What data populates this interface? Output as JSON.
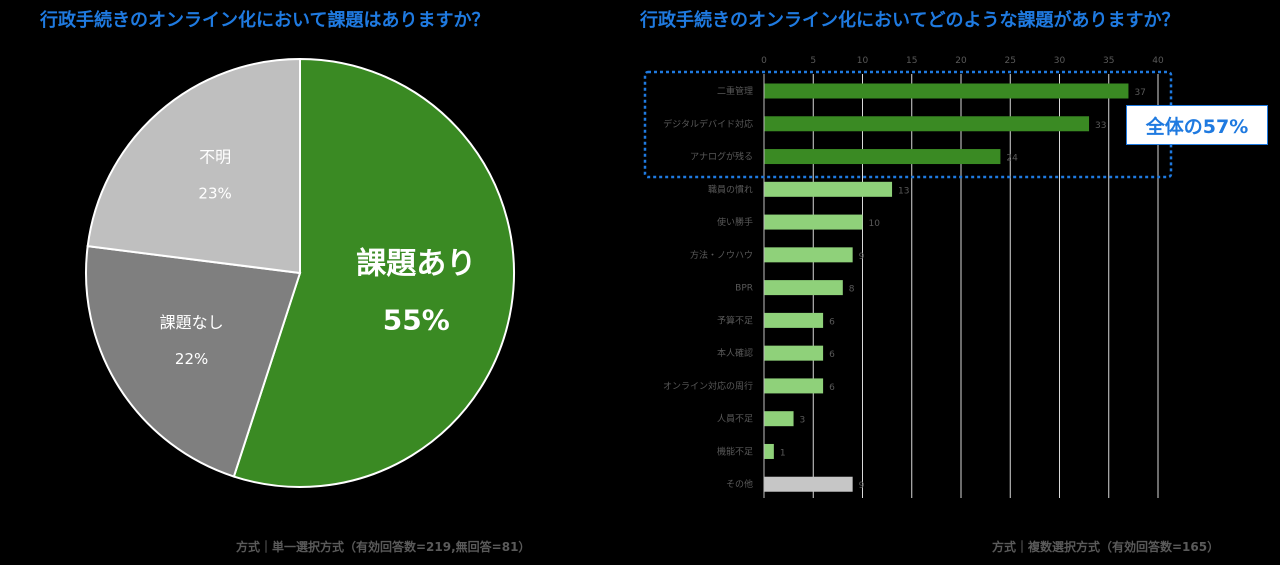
{
  "pie_title": "行政手続きのオンライン化において課題はありますか？",
  "bar_title": "行政手続きのオンライン化においてどのような課題がありますか？",
  "pie_note": "方式｜単一選択方式（有効回答数=219,無回答=81）",
  "bar_note": "方式｜複数選択方式（有効回答数=165）",
  "callout": "全体の57%",
  "colors": {
    "issue": "#3a8a23",
    "none": "#7f7f7f",
    "unknown": "#bfbfbf",
    "top3": "#3a8a23",
    "bar": "#8fd17a",
    "other": "#c6c6c6",
    "highlight": "#1f7ae0"
  },
  "chart_data": [
    {
      "type": "pie",
      "labels": [
        "課題あり",
        "課題なし",
        "不明"
      ],
      "values": [
        55,
        22,
        23
      ],
      "value_labels": [
        "55%",
        "22%",
        "23%"
      ]
    },
    {
      "type": "bar",
      "orientation": "horizontal",
      "categories": [
        "二重管理",
        "デジタルデバイド対応",
        "アナログが残る",
        "職員の慣れ",
        "使い勝手",
        "方法・ノウハウ",
        "BPR",
        "予算不足",
        "本人確認",
        "オンライン対応の周行",
        "人員不足",
        "機能不足",
        "その他"
      ],
      "values": [
        37,
        33,
        24,
        13,
        10,
        9,
        8,
        6,
        6,
        6,
        3,
        1,
        9
      ],
      "xlim": [
        0,
        40
      ],
      "xticks": [
        0,
        5,
        10,
        15,
        20,
        25,
        30,
        35,
        40
      ],
      "highlight_top": 3,
      "grid": true
    }
  ]
}
